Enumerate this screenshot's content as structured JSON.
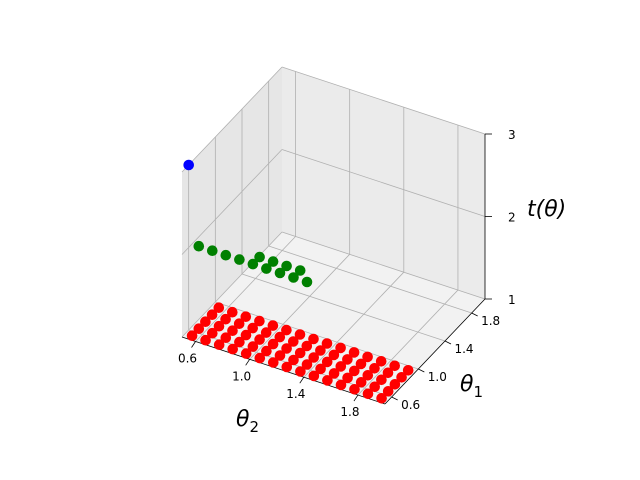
{
  "chart_data": {
    "type": "scatter",
    "projection": "3d",
    "grid": true,
    "axes": {
      "theta2": {
        "label_base": "θ",
        "label_sub": "2",
        "ticks": [
          0.6,
          1.0,
          1.4,
          1.8
        ],
        "tick_labels": [
          "0.6",
          "1.0",
          "1.4",
          "1.8"
        ],
        "lim": [
          0.5,
          2.0
        ]
      },
      "theta1": {
        "label_base": "θ",
        "label_sub": "1",
        "ticks": [
          0.6,
          1.0,
          1.4,
          1.8
        ],
        "tick_labels": [
          "0.6",
          "1.0",
          "1.4",
          "1.8"
        ],
        "lim": [
          0.5,
          2.0
        ]
      },
      "t": {
        "label": "t(θ)",
        "ticks": [
          1,
          2,
          3
        ],
        "tick_labels": [
          "1",
          "2",
          "3"
        ],
        "lim": [
          1,
          3
        ]
      }
    },
    "series": [
      {
        "color": "#ff0000",
        "t": 1,
        "theta2": {
          "start": 0.55,
          "step": 0.1,
          "count": 15
        },
        "theta1": {
          "start": 0.55,
          "step": 0.1,
          "count": 5
        }
      },
      {
        "color": "#008000",
        "t": 2,
        "points": [
          [
            0.55,
            0.65
          ],
          [
            0.65,
            0.65
          ],
          [
            0.75,
            0.65
          ],
          [
            0.85,
            0.65
          ],
          [
            0.95,
            0.65
          ],
          [
            1.05,
            0.65
          ],
          [
            1.15,
            0.65
          ],
          [
            1.25,
            0.65
          ],
          [
            1.35,
            0.65
          ],
          [
            0.95,
            0.75
          ],
          [
            1.05,
            0.75
          ],
          [
            1.15,
            0.75
          ],
          [
            1.25,
            0.75
          ]
        ]
      },
      {
        "color": "#0000ff",
        "t": 3,
        "points": [
          [
            0.5,
            0.6
          ]
        ]
      }
    ]
  }
}
